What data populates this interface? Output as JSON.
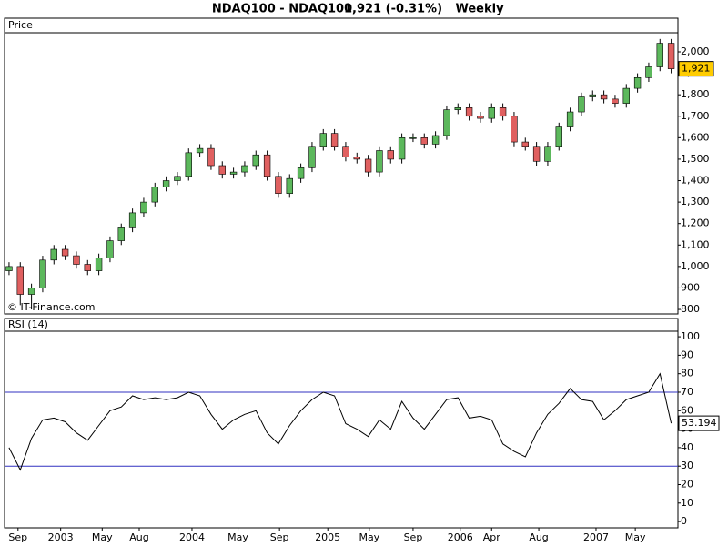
{
  "chart_data": [
    {
      "type": "candlestick",
      "title": "NDAQ100 - NDAQ100",
      "last_change": "1,921 (-0.31%)",
      "period": "Weekly",
      "panel_label": "Price",
      "watermark": "© IT-Finance.com",
      "last_price_label": "1,921",
      "up_color": "#5cb85c",
      "down_color": "#e06060",
      "last_box_color": "#ffcc00",
      "open": [
        980,
        1000,
        870,
        900,
        1030,
        1080,
        1050,
        1010,
        980,
        1040,
        1120,
        1180,
        1250,
        1300,
        1370,
        1400,
        1420,
        1530,
        1550,
        1470,
        1430,
        1440,
        1470,
        1520,
        1420,
        1340,
        1410,
        1460,
        1560,
        1620,
        1560,
        1510,
        1500,
        1440,
        1540,
        1500,
        1600,
        1600,
        1570,
        1610,
        1730,
        1740,
        1700,
        1690,
        1740,
        1700,
        1580,
        1560,
        1490,
        1560,
        1650,
        1720,
        1790,
        1800,
        1780,
        1760,
        1830,
        1880,
        1930,
        2040
      ],
      "high": [
        1020,
        1020,
        920,
        1050,
        1100,
        1100,
        1070,
        1030,
        1060,
        1140,
        1200,
        1270,
        1320,
        1390,
        1420,
        1440,
        1550,
        1570,
        1570,
        1490,
        1460,
        1490,
        1540,
        1540,
        1440,
        1430,
        1480,
        1580,
        1640,
        1640,
        1580,
        1530,
        1520,
        1560,
        1560,
        1620,
        1620,
        1620,
        1630,
        1750,
        1760,
        1760,
        1720,
        1760,
        1760,
        1720,
        1600,
        1580,
        1580,
        1670,
        1740,
        1810,
        1820,
        1820,
        1800,
        1850,
        1900,
        1950,
        2060,
        2060
      ],
      "low": [
        960,
        820,
        800,
        880,
        1010,
        1030,
        990,
        960,
        960,
        1020,
        1100,
        1160,
        1230,
        1280,
        1350,
        1380,
        1400,
        1510,
        1450,
        1410,
        1410,
        1420,
        1450,
        1400,
        1320,
        1320,
        1390,
        1440,
        1540,
        1540,
        1490,
        1480,
        1420,
        1420,
        1480,
        1480,
        1580,
        1550,
        1550,
        1590,
        1710,
        1680,
        1670,
        1670,
        1680,
        1560,
        1540,
        1470,
        1470,
        1540,
        1630,
        1700,
        1770,
        1760,
        1740,
        1740,
        1810,
        1860,
        1910,
        1900
      ],
      "close": [
        1000,
        870,
        900,
        1030,
        1080,
        1050,
        1010,
        980,
        1040,
        1120,
        1180,
        1250,
        1300,
        1370,
        1400,
        1420,
        1530,
        1550,
        1470,
        1430,
        1440,
        1470,
        1520,
        1420,
        1340,
        1410,
        1460,
        1560,
        1620,
        1560,
        1510,
        1500,
        1440,
        1540,
        1500,
        1600,
        1600,
        1570,
        1610,
        1730,
        1740,
        1700,
        1690,
        1740,
        1700,
        1580,
        1560,
        1490,
        1560,
        1650,
        1720,
        1790,
        1800,
        1780,
        1760,
        1830,
        1880,
        1930,
        2040,
        1921
      ],
      "xlim": [
        -0.4,
        59.6
      ],
      "ylim": [
        779,
        2089
      ],
      "yticks": [
        800,
        900,
        {
          "value": 1000,
          "label": "1,000"
        },
        {
          "value": 1100,
          "label": "1,100"
        },
        {
          "value": 1200,
          "label": "1,200"
        },
        {
          "value": 1300,
          "label": "1,300"
        },
        {
          "value": 1400,
          "label": "1,400"
        },
        {
          "value": 1500,
          "label": "1,500"
        },
        {
          "value": 1600,
          "label": "1,600"
        },
        {
          "value": 1700,
          "label": "1,700"
        },
        {
          "value": 1800,
          "label": "1,800"
        },
        {
          "value": 1900,
          "label": "1,900"
        },
        {
          "value": 2000,
          "label": "2,000"
        }
      ]
    },
    {
      "type": "line",
      "panel_label": "RSI (14)",
      "color": "#000000",
      "level_color": "#3030c0",
      "last_box_color": "#ffffff",
      "values": [
        40,
        28,
        45,
        55,
        56,
        54,
        48,
        44,
        52,
        60,
        62,
        68,
        66,
        67,
        66,
        67,
        70,
        68,
        58,
        50,
        55,
        58,
        60,
        48,
        42,
        52,
        60,
        66,
        70,
        68,
        53,
        50,
        46,
        55,
        50,
        65,
        56,
        50,
        58,
        66,
        67,
        56,
        57,
        55,
        42,
        38,
        35,
        48,
        58,
        64,
        72,
        66,
        65,
        55,
        60,
        66,
        68,
        70,
        80,
        53.194
      ],
      "levels": [
        70,
        30
      ],
      "xlim": [
        -0.4,
        59.6
      ],
      "ylim": [
        -3.4,
        102.5
      ],
      "yticks": [
        0,
        10,
        20,
        30,
        40,
        50,
        60,
        70,
        80,
        90,
        100
      ],
      "xticks": [
        {
          "value": 0.8,
          "label": "Sep"
        },
        {
          "value": 4.6,
          "label": "2003"
        },
        {
          "value": 8.3,
          "label": "May"
        },
        {
          "value": 11.6,
          "label": "Aug"
        },
        {
          "value": 16.3,
          "label": "2004"
        },
        {
          "value": 20.4,
          "label": "May"
        },
        {
          "value": 24.1,
          "label": "Sep"
        },
        {
          "value": 28.4,
          "label": "2005"
        },
        {
          "value": 32.1,
          "label": "May"
        },
        {
          "value": 36.0,
          "label": "Sep"
        },
        {
          "value": 40.2,
          "label": "2006"
        },
        {
          "value": 43.0,
          "label": "Apr"
        },
        {
          "value": 47.2,
          "label": "Aug"
        },
        {
          "value": 52.3,
          "label": "2007"
        },
        {
          "value": 55.8,
          "label": "May"
        }
      ]
    }
  ]
}
